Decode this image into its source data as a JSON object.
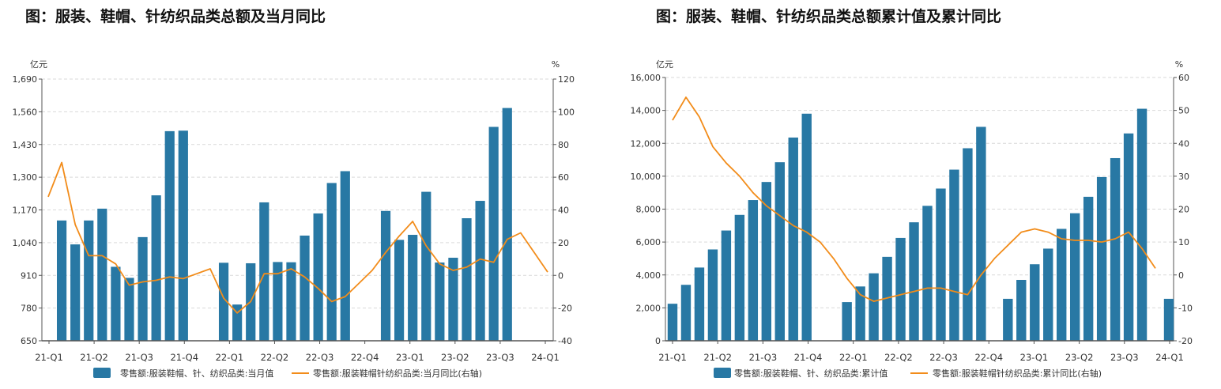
{
  "chart_data": [
    {
      "type": "bar",
      "title": "图：服装、鞋帽、针纺织品类总额及当月同比",
      "left_unit": "亿元",
      "right_unit": "%",
      "x_tick_labels": [
        "21-Q1",
        "21-Q2",
        "21-Q3",
        "21-Q4",
        "22-Q1",
        "22-Q2",
        "22-Q3",
        "22-Q4",
        "23-Q1",
        "23-Q2",
        "23-Q3",
        "24-Q1"
      ],
      "y_left": {
        "min": 650,
        "max": 1690,
        "ticks": [
          "650",
          "780",
          "910",
          "1,040",
          "1,170",
          "1,300",
          "1,430",
          "1,560",
          "1,690"
        ]
      },
      "y_right": {
        "min": -40,
        "max": 120,
        "ticks": [
          "-40",
          "-20",
          "0",
          "20",
          "40",
          "60",
          "80",
          "100",
          "120"
        ]
      },
      "x_months": [
        "2021-01",
        "2021-02",
        "2021-03",
        "2021-04",
        "2021-05",
        "2021-06",
        "2021-07",
        "2021-08",
        "2021-09",
        "2021-10",
        "2021-11",
        "2021-12",
        "2022-01",
        "2022-02",
        "2022-03",
        "2022-04",
        "2022-05",
        "2022-06",
        "2022-07",
        "2022-08",
        "2022-09",
        "2022-10",
        "2022-11",
        "2022-12",
        "2023-01",
        "2023-02",
        "2023-03",
        "2023-04",
        "2023-05",
        "2023-06",
        "2023-07",
        "2023-08",
        "2023-09",
        "2023-10",
        "2023-11",
        "2023-12",
        "2024-01",
        "2024-02"
      ],
      "series": [
        {
          "name": "零售额:服装鞋帽、针、纺织品类:当月值",
          "kind": "bar",
          "axis": "left",
          "color": "#2878a4",
          "values": [
            null,
            1128,
            1033,
            1128,
            1175,
            944,
            900,
            1062,
            1228,
            1483,
            1485,
            null,
            null,
            960,
            794,
            958,
            1200,
            963,
            962,
            1068,
            1156,
            1277,
            1324,
            null,
            null,
            1166,
            1051,
            1071,
            1242,
            961,
            980,
            1137,
            1206,
            1500,
            1575,
            null,
            null,
            null
          ]
        },
        {
          "name": "零售额:服装鞋帽针纺织品类:当月同比(右轴)",
          "kind": "line",
          "axis": "right",
          "color": "#f28c1a",
          "values": [
            48,
            69,
            31,
            12,
            12,
            7,
            -6,
            -4,
            -3,
            -1,
            -2,
            1,
            4,
            -14,
            -23,
            -16,
            1,
            1,
            4,
            -1,
            -8,
            -16,
            -13,
            -5,
            3,
            14,
            24,
            33,
            18,
            7,
            3,
            5,
            10,
            8,
            22,
            26,
            14,
            2
          ]
        }
      ]
    },
    {
      "type": "bar",
      "title": "图：服装、鞋帽、针纺织品类总额累计值及累计同比",
      "left_unit": "亿元",
      "right_unit": "%",
      "x_tick_labels": [
        "21-Q1",
        "21-Q2",
        "21-Q3",
        "21-Q4",
        "22-Q1",
        "22-Q2",
        "22-Q3",
        "22-Q4",
        "23-Q1",
        "23-Q2",
        "23-Q3",
        "24-Q1"
      ],
      "y_left": {
        "min": 0,
        "max": 16000,
        "ticks": [
          "0",
          "2,000",
          "4,000",
          "6,000",
          "8,000",
          "10,000",
          "12,000",
          "14,000",
          "16,000"
        ]
      },
      "y_right": {
        "min": -20,
        "max": 60,
        "ticks": [
          "-20",
          "-10",
          "0",
          "10",
          "20",
          "30",
          "40",
          "50",
          "60"
        ]
      },
      "x_months": [
        "2021-01",
        "2021-02",
        "2021-03",
        "2021-04",
        "2021-05",
        "2021-06",
        "2021-07",
        "2021-08",
        "2021-09",
        "2021-10",
        "2021-11",
        "2021-12",
        "2022-01",
        "2022-02",
        "2022-03",
        "2022-04",
        "2022-05",
        "2022-06",
        "2022-07",
        "2022-08",
        "2022-09",
        "2022-10",
        "2022-11",
        "2022-12",
        "2023-01",
        "2023-02",
        "2023-03",
        "2023-04",
        "2023-05",
        "2023-06",
        "2023-07",
        "2023-08",
        "2023-09",
        "2023-10",
        "2023-11",
        "2023-12",
        "2024-01",
        "2024-02"
      ],
      "series": [
        {
          "name": "零售额:服装鞋帽、针、纺织品类:累计值",
          "kind": "bar",
          "axis": "left",
          "color": "#2878a4",
          "values": [
            2250,
            3400,
            4450,
            5550,
            6700,
            7650,
            8550,
            9650,
            10850,
            12350,
            13800,
            null,
            null,
            2350,
            3300,
            4100,
            5100,
            6250,
            7200,
            8200,
            9250,
            10400,
            11700,
            13000,
            null,
            2550,
            3700,
            4650,
            5600,
            6800,
            7750,
            8750,
            9950,
            11100,
            12600,
            14100,
            null,
            2550
          ]
        },
        {
          "name": "零售额:服装鞋帽针纺织品类:累计同比(右轴)",
          "kind": "line",
          "axis": "right",
          "color": "#f28c1a",
          "values": [
            47,
            54,
            48,
            39,
            34,
            30,
            25,
            21,
            18,
            15,
            13,
            10,
            5,
            -1,
            -6,
            -8,
            -7,
            -6,
            -5,
            -4,
            -4,
            -5,
            -6,
            0,
            5,
            9,
            13,
            14,
            13,
            11,
            10.5,
            10.5,
            10,
            11,
            13,
            8,
            2,
            null
          ]
        }
      ]
    }
  ]
}
